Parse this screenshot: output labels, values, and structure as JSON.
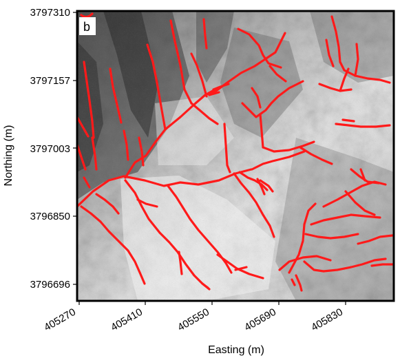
{
  "chart_data": {
    "type": "map",
    "panel_label": "b",
    "xlabel": "Easting (m)",
    "ylabel": "Northing (m)",
    "x_ticks": [
      "405270",
      "405410",
      "405550",
      "405690",
      "405830"
    ],
    "y_ticks": [
      "3797310",
      "3797157",
      "3797003",
      "3796850",
      "3796696"
    ],
    "xlim": [
      405270,
      405830
    ],
    "ylim": [
      3796696,
      3797310
    ],
    "background": "shaded-relief hillshade (grayscale)",
    "overlay": "extracted channel network",
    "colors": {
      "channels": "#ff1a1a",
      "frame": "#000000"
    }
  }
}
